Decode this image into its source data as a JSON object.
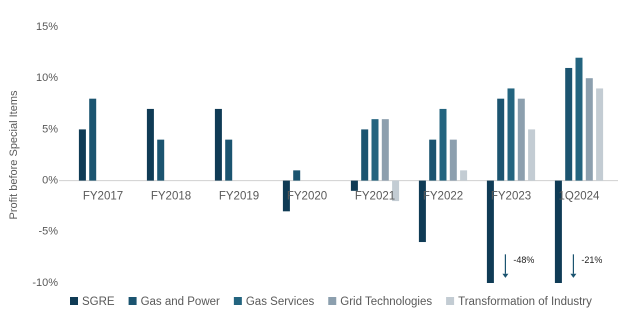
{
  "chart_data": {
    "type": "bar",
    "y_label": "Profit before Special Items",
    "categories": [
      "FY2017",
      "FY2018",
      "FY2019",
      "FY2020",
      "FY2021",
      "FY2022",
      "FY2023",
      "1Q2024"
    ],
    "series": [
      {
        "name": "SGRE",
        "color": "#0f3b55",
        "values": [
          5,
          7,
          7,
          -3,
          -1,
          -6,
          -10,
          -10
        ]
      },
      {
        "name": "Gas and Power",
        "color": "#1b5470",
        "values": [
          8,
          4,
          4,
          1,
          5,
          4,
          8,
          11
        ]
      },
      {
        "name": "Gas Services",
        "color": "#23647f",
        "values": [
          null,
          null,
          null,
          null,
          6,
          7,
          9,
          12
        ]
      },
      {
        "name": "Grid Technologies",
        "color": "#8c9fae",
        "values": [
          null,
          null,
          null,
          null,
          6,
          4,
          8,
          10
        ]
      },
      {
        "name": "Transformation of Industry",
        "color": "#c3ccd3",
        "values": [
          null,
          null,
          null,
          null,
          -2,
          1,
          5,
          9
        ]
      }
    ],
    "annotations": [
      "-48%",
      "-21%"
    ],
    "ylim": [
      -10,
      15
    ],
    "yticks": [
      {
        "value": -10,
        "label": "-10%"
      },
      {
        "value": -5,
        "label": "-5%"
      },
      {
        "value": 0,
        "label": "0%"
      },
      {
        "value": 5,
        "label": "5%"
      },
      {
        "value": 10,
        "label": "10%"
      },
      {
        "value": 15,
        "label": "15%"
      }
    ],
    "grid": false
  }
}
